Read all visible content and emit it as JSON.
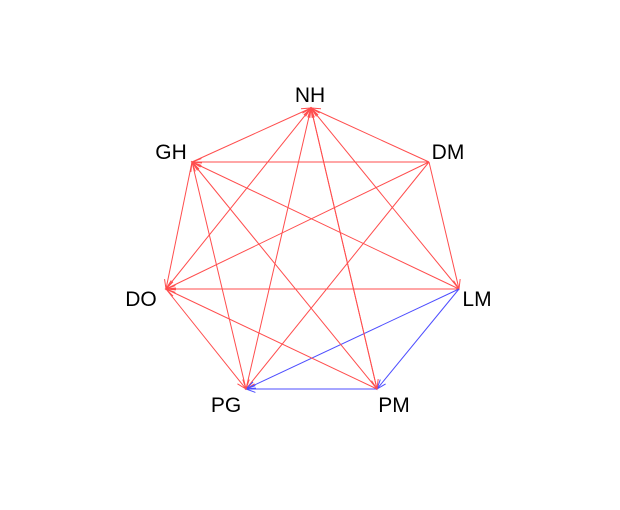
{
  "diagram": {
    "type": "directed-graph",
    "layout": "circle",
    "nodes": [
      {
        "id": "NH",
        "label": "NH"
      },
      {
        "id": "DM",
        "label": "DM"
      },
      {
        "id": "LM",
        "label": "LM"
      },
      {
        "id": "PM",
        "label": "PM"
      },
      {
        "id": "PG",
        "label": "PG"
      },
      {
        "id": "DO",
        "label": "DO"
      },
      {
        "id": "GH",
        "label": "GH"
      }
    ],
    "edge_colors": {
      "red": "#ff4d4d",
      "blue": "#4d4dff"
    },
    "edges": [
      {
        "from": "DM",
        "to": "NH",
        "color": "red"
      },
      {
        "from": "DM",
        "to": "GH",
        "color": "red"
      },
      {
        "from": "DM",
        "to": "DO",
        "color": "red"
      },
      {
        "from": "DM",
        "to": "PG",
        "color": "red"
      },
      {
        "from": "DM",
        "to": "LM",
        "color": "red"
      },
      {
        "from": "LM",
        "to": "NH",
        "color": "red"
      },
      {
        "from": "LM",
        "to": "GH",
        "color": "red"
      },
      {
        "from": "LM",
        "to": "DO",
        "color": "red"
      },
      {
        "from": "LM",
        "to": "PG",
        "color": "blue"
      },
      {
        "from": "LM",
        "to": "PM",
        "color": "blue"
      },
      {
        "from": "PM",
        "to": "PG",
        "color": "blue"
      },
      {
        "from": "PM",
        "to": "NH",
        "color": "red"
      },
      {
        "from": "PM",
        "to": "GH",
        "color": "red"
      },
      {
        "from": "PM",
        "to": "DO",
        "color": "red"
      },
      {
        "from": "NH",
        "to": "PM",
        "color": "red"
      },
      {
        "from": "PG",
        "to": "NH",
        "color": "red"
      },
      {
        "from": "PG",
        "to": "GH",
        "color": "red"
      },
      {
        "from": "DO",
        "to": "NH",
        "color": "red"
      },
      {
        "from": "DO",
        "to": "PG",
        "color": "red"
      },
      {
        "from": "GH",
        "to": "NH",
        "color": "red"
      },
      {
        "from": "GH",
        "to": "DO",
        "color": "red"
      }
    ]
  }
}
